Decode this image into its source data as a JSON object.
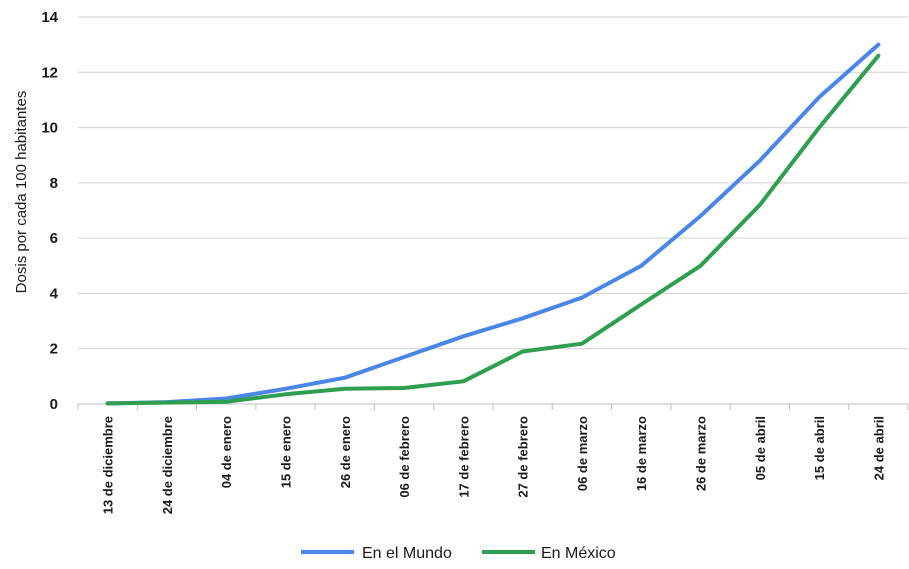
{
  "chart_data": {
    "type": "line",
    "ylabel": "Dosis por cada 100 habitantes",
    "xlabel": "",
    "ylim": [
      0,
      14
    ],
    "yticks": [
      "0",
      "2",
      "4",
      "6",
      "8",
      "10",
      "12",
      "14"
    ],
    "grid": true,
    "legend_position": "bottom",
    "categories": [
      "13 de diciembre",
      "24 de diciembre",
      "04 de enero",
      "15 de enero",
      "26 de enero",
      "06 de febrero",
      "17 de febrero",
      "27 de febrero",
      "06 de marzo",
      "16 de marzo",
      "26 de marzo",
      "05 de abril",
      "15 de abril",
      "24 de abril"
    ],
    "series": [
      {
        "name": "En el Mundo",
        "color": "#4a86e8",
        "values": [
          0.02,
          0.07,
          0.2,
          0.55,
          0.95,
          1.7,
          2.45,
          3.1,
          3.85,
          5.0,
          6.8,
          8.8,
          11.1,
          13.0
        ]
      },
      {
        "name": "En México",
        "color": "#2e9e4f",
        "values": [
          0.02,
          0.05,
          0.08,
          0.35,
          0.55,
          0.58,
          0.82,
          1.9,
          2.18,
          3.6,
          5.0,
          7.2,
          10.0,
          12.6
        ]
      }
    ]
  }
}
